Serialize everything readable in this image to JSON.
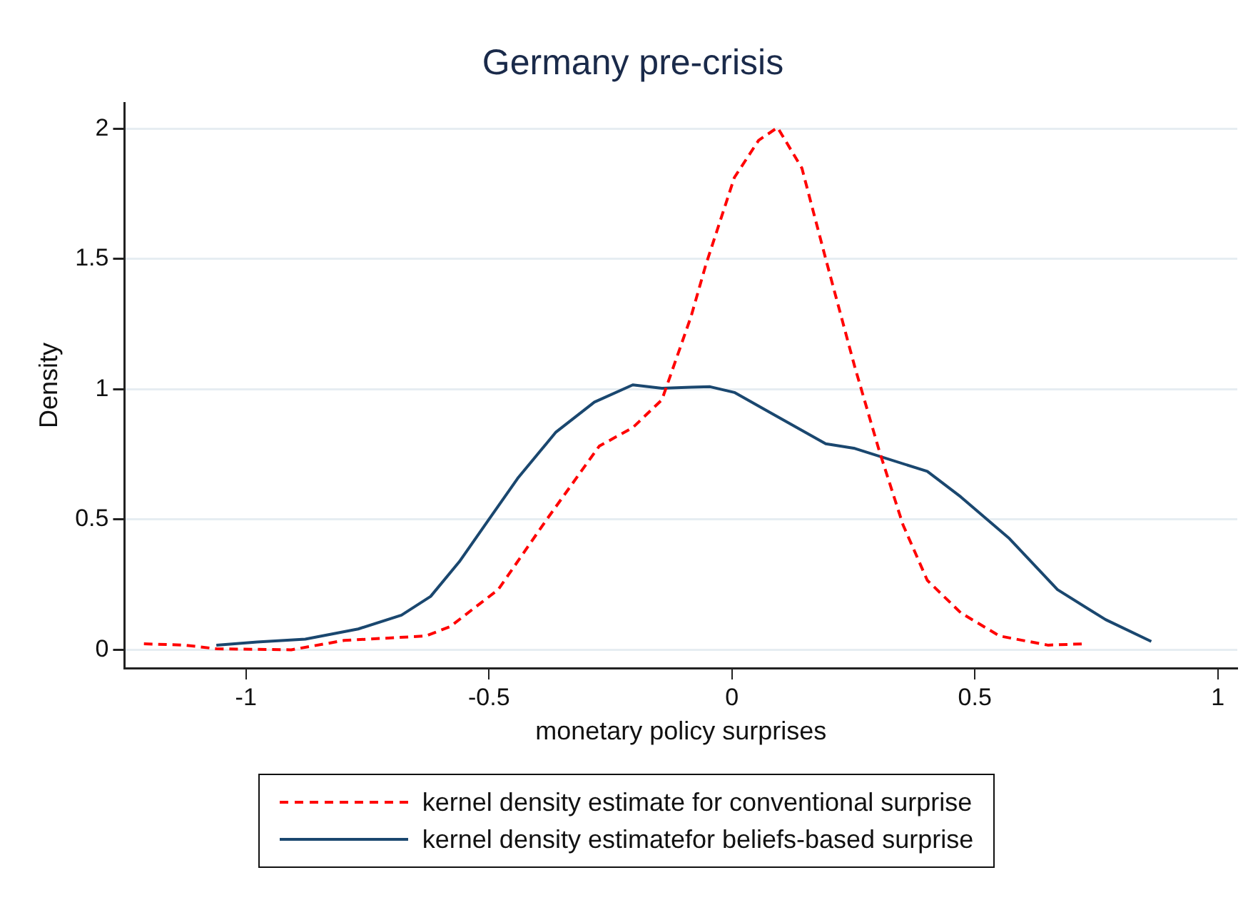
{
  "chart_data": {
    "type": "line",
    "title": "Germany pre-crisis",
    "xlabel": "monetary policy surprises",
    "ylabel": "Density",
    "xlim": [
      -1.25,
      1.04
    ],
    "xticks": [
      -1,
      -0.5,
      0,
      0.5,
      1
    ],
    "ylim": [
      -0.07,
      2.1
    ],
    "yticks": [
      0,
      0.5,
      1,
      1.5,
      2
    ],
    "grid": "y",
    "legend": "bottom",
    "marker": "none",
    "series": [
      {
        "name": "kernel density estimate for conventional surprise",
        "color": "#ff0000",
        "line_style": "dashed",
        "x": [
          -1.21,
          -1.126,
          -1.061,
          -0.907,
          -0.798,
          -0.63,
          -0.58,
          -0.481,
          -0.382,
          -0.273,
          -0.204,
          -0.144,
          -0.114,
          -0.084,
          -0.054,
          0.005,
          0.055,
          0.094,
          0.144,
          0.194,
          0.253,
          0.303,
          0.352,
          0.402,
          0.471,
          0.551,
          0.65,
          0.724
        ],
        "values": [
          0.023,
          0.018,
          0.004,
          0.0,
          0.036,
          0.053,
          0.089,
          0.231,
          0.498,
          0.782,
          0.853,
          0.96,
          1.12,
          1.28,
          1.476,
          1.813,
          1.956,
          2.005,
          1.849,
          1.494,
          1.085,
          0.765,
          0.48,
          0.267,
          0.142,
          0.053,
          0.018,
          0.023
        ]
      },
      {
        "name": "kernel density estimatefor beliefs-based surprise",
        "color": "#1a476f",
        "line_style": "solid",
        "x": [
          -1.061,
          -0.977,
          -0.878,
          -0.769,
          -0.68,
          -0.62,
          -0.561,
          -0.501,
          -0.441,
          -0.362,
          -0.283,
          -0.204,
          -0.144,
          -0.084,
          -0.045,
          0.005,
          0.074,
          0.193,
          0.253,
          0.402,
          0.471,
          0.571,
          0.67,
          0.769,
          0.863
        ],
        "values": [
          0.018,
          0.03,
          0.041,
          0.08,
          0.133,
          0.205,
          0.338,
          0.498,
          0.658,
          0.836,
          0.951,
          1.017,
          1.004,
          1.008,
          1.01,
          0.988,
          0.916,
          0.791,
          0.773,
          0.685,
          0.587,
          0.427,
          0.231,
          0.116,
          0.032
        ]
      }
    ]
  }
}
